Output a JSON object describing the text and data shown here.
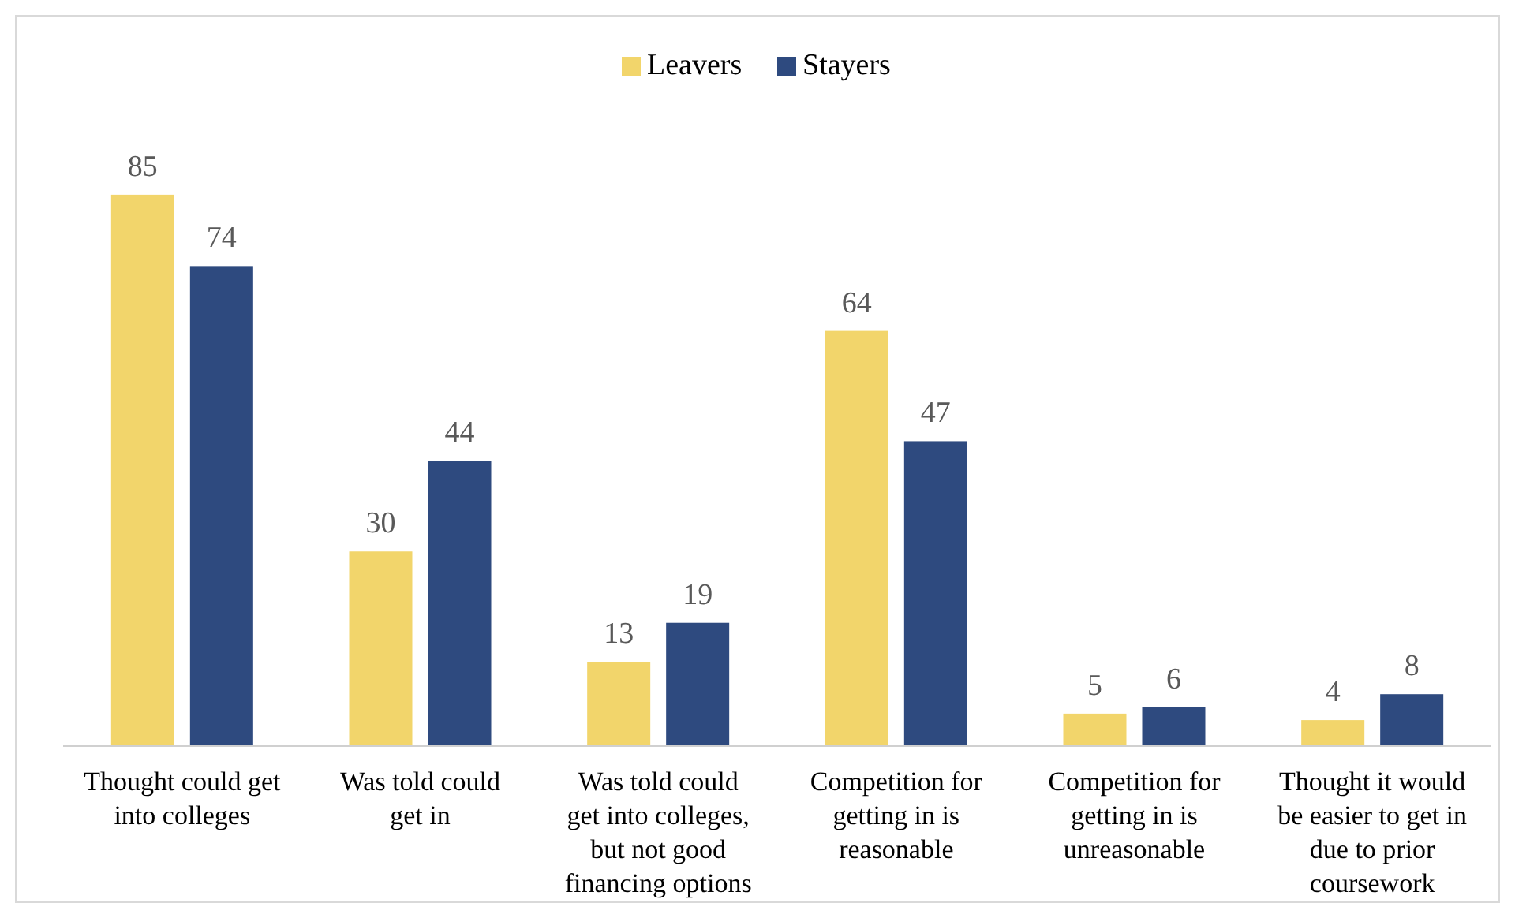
{
  "chart_data": {
    "type": "bar",
    "categories": [
      "Thought could get\ninto colleges",
      "Was told could\nget in",
      "Was told could\nget into colleges,\nbut not good\nfinancing options",
      "Competition for\ngetting in is\nreasonable",
      "Competition for\ngetting in is\nunreasonable",
      "Thought it would\nbe easier to get in\ndue to prior\ncoursework"
    ],
    "series": [
      {
        "name": "Leavers",
        "color": "#f2d56b",
        "values": [
          85,
          30,
          13,
          64,
          5,
          4
        ]
      },
      {
        "name": "Stayers",
        "color": "#2e4a7f",
        "values": [
          74,
          44,
          19,
          47,
          6,
          8
        ]
      }
    ],
    "data_labels": true,
    "legend": "top"
  }
}
